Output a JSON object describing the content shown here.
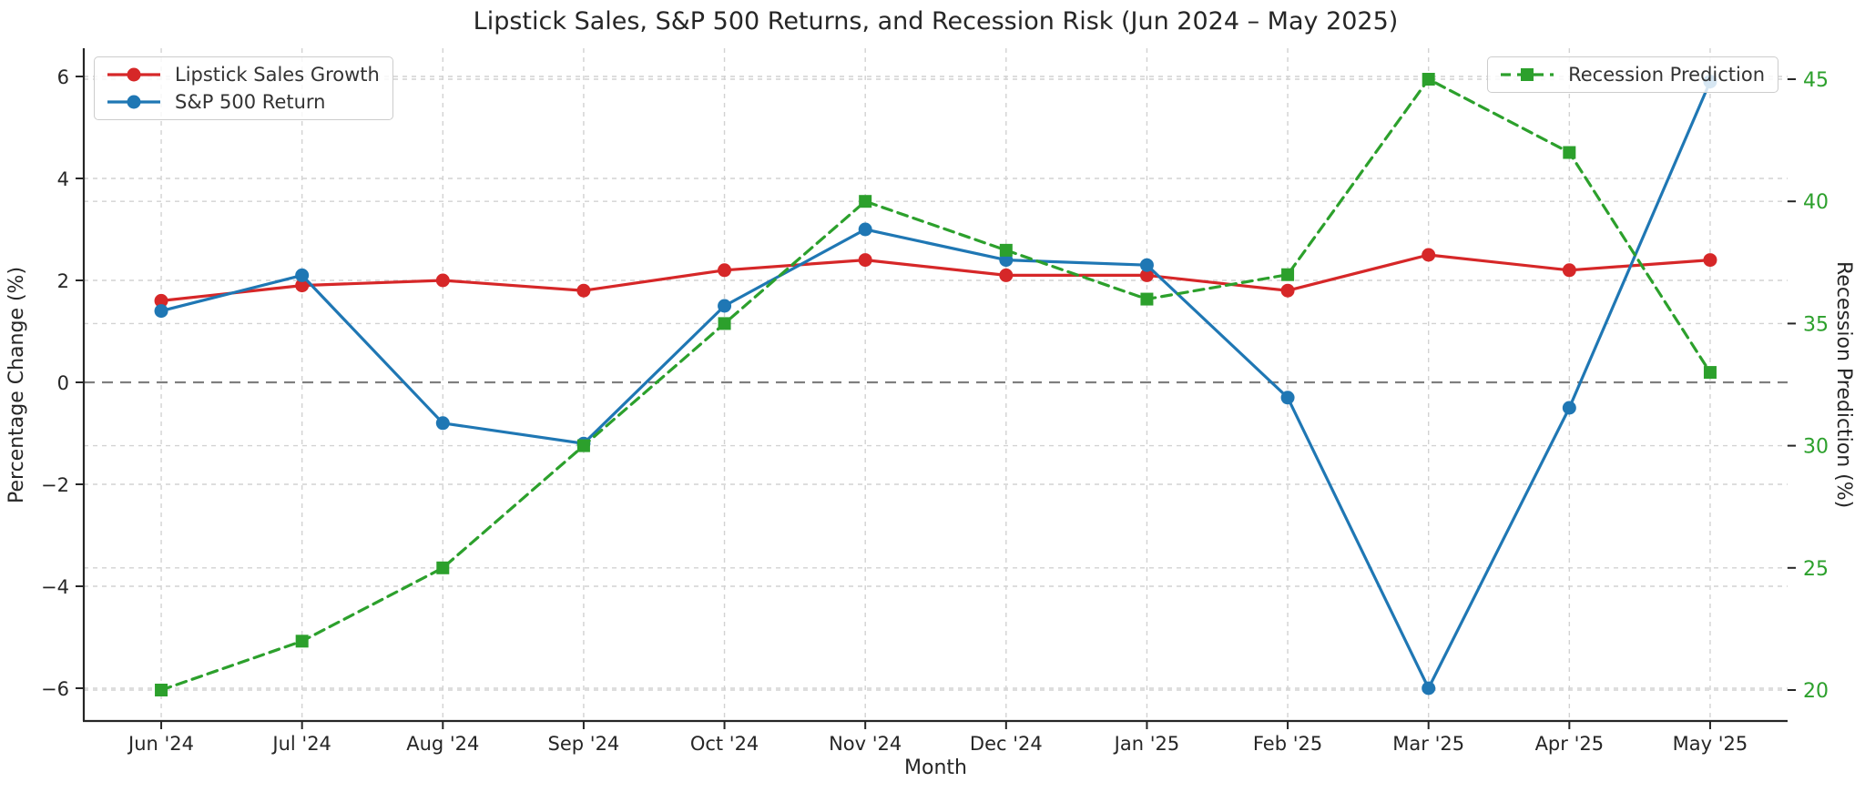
{
  "chart_data": {
    "type": "line",
    "title": "Lipstick Sales, S&P 500 Returns, and Recession Risk (Jun 2024 – May 2025)",
    "xlabel": "Month",
    "ylabel_left": "Percentage Change (%)",
    "ylabel_right": "Recession Prediction (%)",
    "categories": [
      "Jun '24",
      "Jul '24",
      "Aug '24",
      "Sep '24",
      "Oct '24",
      "Nov '24",
      "Dec '24",
      "Jan '25",
      "Feb '25",
      "Mar '25",
      "Apr '25",
      "May '25"
    ],
    "series": [
      {
        "name": "Lipstick Sales Growth",
        "axis": "left",
        "color": "#d62728",
        "marker": "circle",
        "linestyle": "solid",
        "values": [
          1.6,
          1.9,
          2.0,
          1.8,
          2.2,
          2.4,
          2.1,
          2.1,
          1.8,
          2.5,
          2.2,
          2.4
        ]
      },
      {
        "name": "S&P 500 Return",
        "axis": "left",
        "color": "#1f77b4",
        "marker": "circle",
        "linestyle": "solid",
        "values": [
          1.4,
          2.1,
          -0.8,
          -1.2,
          1.5,
          3.0,
          2.4,
          2.3,
          -0.3,
          -6.0,
          -0.5,
          5.9
        ]
      },
      {
        "name": "Recession Prediction",
        "axis": "right",
        "color": "#2ca02c",
        "marker": "square",
        "linestyle": "dashed",
        "values": [
          20,
          22,
          25,
          30,
          35,
          40,
          38,
          36,
          37,
          45,
          42,
          33
        ]
      }
    ],
    "yticks_left": [
      -6,
      -4,
      -2,
      0,
      2,
      4,
      6
    ],
    "yticks_right": [
      20,
      25,
      30,
      35,
      40,
      45
    ],
    "ylim_left": [
      -6.6,
      6.6
    ],
    "ylim_right": [
      18.8,
      46.3
    ],
    "grid": true,
    "zero_line": true,
    "legend_positions": {
      "main": "upper left",
      "secondary": "upper right"
    },
    "colors": {
      "left_tick_label": "#262626",
      "right_tick_label": "#2ca02c",
      "grid_line": "#d2d2d2",
      "zero_line": "#7f7f7f",
      "spine": "#262626"
    }
  }
}
